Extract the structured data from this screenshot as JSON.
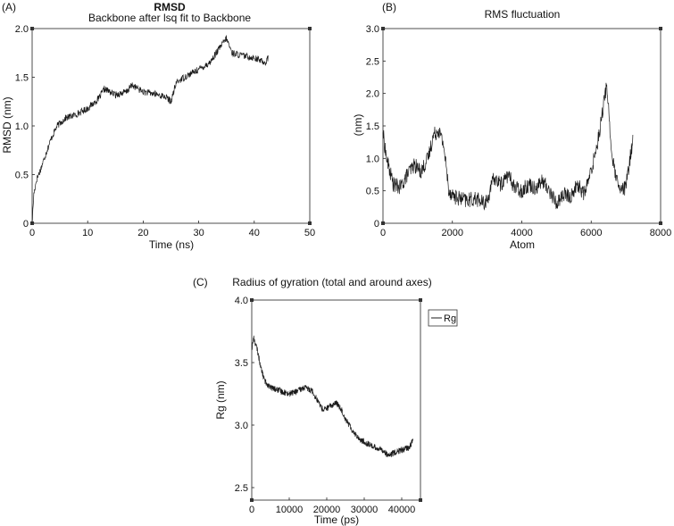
{
  "colors": {
    "line": "#1a1a1a",
    "axis": "#222222",
    "background": "#ffffff"
  },
  "chart_data": [
    {
      "panel": "(A)",
      "type": "line",
      "title": "RMSD",
      "subtitle": "Backbone after lsq fit to Backbone",
      "xlabel": "Time (ns)",
      "ylabel": "RMSD (nm)",
      "xlim": [
        0,
        50
      ],
      "ylim": [
        0,
        2.0
      ],
      "xticks": [
        "0",
        "10",
        "20",
        "30",
        "40",
        "50"
      ],
      "yticks": [
        "0",
        "0.5",
        "1.0",
        "1.5",
        "2.0"
      ],
      "noise": 0.035,
      "series": [
        {
          "name": "RMSD",
          "x": [
            0,
            0.3,
            0.8,
            1.5,
            2.5,
            3.5,
            4.5,
            6,
            8,
            10,
            12,
            13,
            15,
            17,
            18,
            20,
            22,
            24,
            25,
            26,
            28,
            30,
            32,
            34,
            35,
            36,
            38,
            40,
            42,
            42.5
          ],
          "y": [
            0,
            0.3,
            0.45,
            0.55,
            0.72,
            0.88,
            1.0,
            1.08,
            1.12,
            1.18,
            1.28,
            1.38,
            1.32,
            1.35,
            1.42,
            1.35,
            1.33,
            1.3,
            1.25,
            1.45,
            1.52,
            1.58,
            1.65,
            1.82,
            1.9,
            1.75,
            1.72,
            1.7,
            1.65,
            1.7
          ]
        }
      ]
    },
    {
      "panel": "(B)",
      "type": "line",
      "title": "RMS fluctuation",
      "xlabel": "Atom",
      "ylabel": "(nm)",
      "xlim": [
        0,
        8000
      ],
      "ylim": [
        0,
        3.0
      ],
      "xticks": [
        "0",
        "2000",
        "4000",
        "6000",
        "8000"
      ],
      "yticks": [
        "0",
        "0.5",
        "1.0",
        "1.5",
        "2.0",
        "2.5",
        "3.0"
      ],
      "noise": 0.12,
      "series": [
        {
          "name": "RMSF",
          "x": [
            0,
            100,
            300,
            500,
            700,
            900,
            1100,
            1300,
            1450,
            1600,
            1750,
            1900,
            2100,
            2400,
            2700,
            2900,
            3000,
            3200,
            3400,
            3600,
            3800,
            4000,
            4200,
            4400,
            4600,
            4800,
            5000,
            5200,
            5400,
            5600,
            5800,
            6000,
            6200,
            6350,
            6450,
            6600,
            6800,
            7000,
            7200
          ],
          "y": [
            1.4,
            1.0,
            0.6,
            0.55,
            0.75,
            0.9,
            0.8,
            1.0,
            1.35,
            1.45,
            1.2,
            0.5,
            0.4,
            0.35,
            0.38,
            0.3,
            0.35,
            0.7,
            0.6,
            0.75,
            0.55,
            0.5,
            0.6,
            0.55,
            0.65,
            0.5,
            0.3,
            0.45,
            0.4,
            0.6,
            0.45,
            0.8,
            1.3,
            1.8,
            2.15,
            1.0,
            0.5,
            0.55,
            1.3
          ]
        }
      ]
    },
    {
      "panel": "(C)",
      "type": "line",
      "title": "Radius of gyration (total and around axes)",
      "xlabel": "Time (ps)",
      "ylabel": "Rg (nm)",
      "xlim": [
        0,
        45000
      ],
      "ylim": [
        2.4,
        4.0
      ],
      "xticks": [
        "0",
        "10000",
        "20000",
        "30000",
        "40000"
      ],
      "yticks": [
        "2.5",
        "3.0",
        "3.5",
        "4.0"
      ],
      "legend": [
        "Rg"
      ],
      "noise": 0.025,
      "series": [
        {
          "name": "Rg",
          "x": [
            0,
            500,
            1500,
            2500,
            3500,
            5000,
            7000,
            10000,
            12000,
            14000,
            16000,
            17500,
            19000,
            21000,
            22500,
            24000,
            25000,
            27000,
            29000,
            31000,
            33000,
            35000,
            36500,
            38000,
            40000,
            42000,
            43000
          ],
          "y": [
            3.6,
            3.7,
            3.6,
            3.45,
            3.35,
            3.3,
            3.28,
            3.25,
            3.27,
            3.3,
            3.28,
            3.2,
            3.12,
            3.15,
            3.18,
            3.12,
            3.05,
            2.95,
            2.88,
            2.85,
            2.82,
            2.8,
            2.75,
            2.78,
            2.8,
            2.82,
            2.88
          ]
        }
      ]
    }
  ]
}
